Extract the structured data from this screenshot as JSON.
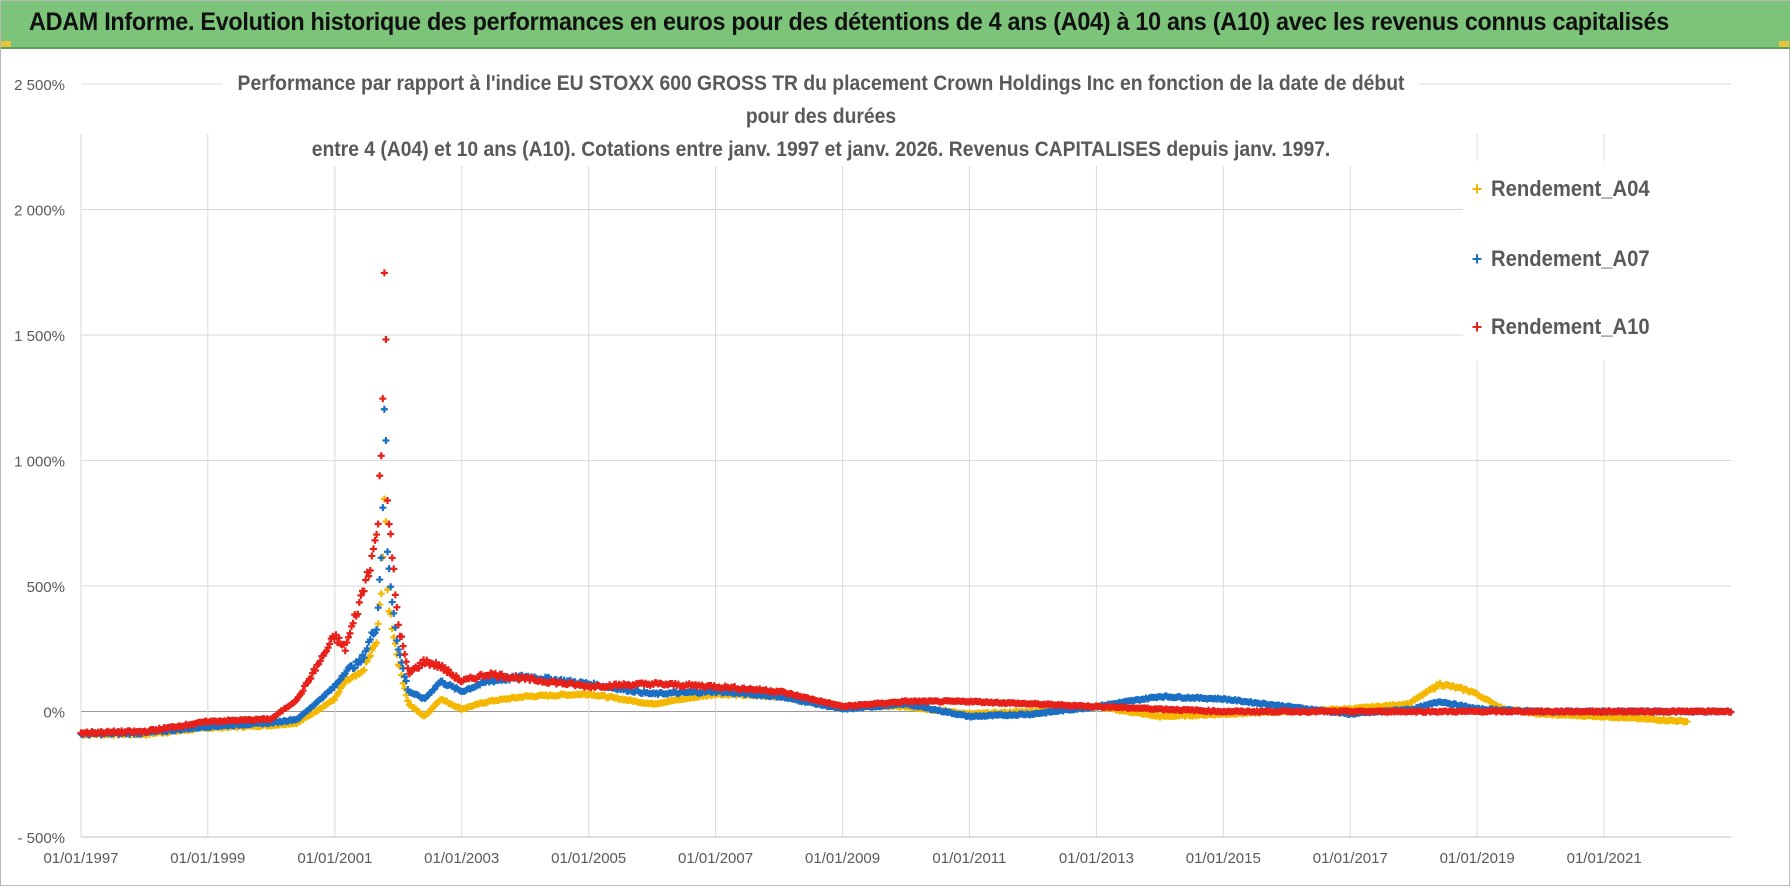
{
  "header": {
    "banner_text": "ADAM Informe. Evolution historique des performances en euros pour des détentions de 4 ans (A04) à 10 ans (A10) avec les revenus connus capitalisés"
  },
  "chart_data": {
    "type": "scatter",
    "title_line1": "Performance par rapport à l'indice EU STOXX 600 GROSS TR  du placement Crown Holdings Inc en fonction de la date de début pour des durées",
    "title_line2": "entre 4 (A04) et 10 ans (A10).  Cotations entre janv. 1997 et janv. 2026. Revenus CAPITALISES depuis janv. 1997.",
    "xlabel": "",
    "ylabel": "",
    "x_range": [
      "1997-01-01",
      "2023-01-01"
    ],
    "ylim": [
      -500,
      2500
    ],
    "y_ticks": [
      -500,
      0,
      500,
      1000,
      1500,
      2000,
      2500
    ],
    "y_tick_labels": [
      "- 500%",
      "0%",
      "500%",
      "1 000%",
      "1 500%",
      "2 000%",
      "2 500%"
    ],
    "x_tick_labels": [
      "01/01/1997",
      "01/01/1999",
      "01/01/2001",
      "01/01/2003",
      "01/01/2005",
      "01/01/2007",
      "01/01/2009",
      "01/01/2011",
      "01/01/2013",
      "01/01/2015",
      "01/01/2017",
      "01/01/2019",
      "01/01/2021"
    ],
    "x_tick_years": [
      1997,
      1999,
      2001,
      2003,
      2005,
      2007,
      2009,
      2011,
      2013,
      2015,
      2017,
      2019,
      2021
    ],
    "grid": true,
    "legend_position": "top-right",
    "marker": "+",
    "series": [
      {
        "name": "Rendement_A04",
        "color": "#f5b800",
        "points": [
          [
            "1997-01-01",
            -90
          ],
          [
            "1998-01-01",
            -90
          ],
          [
            "1999-01-01",
            -65
          ],
          [
            "2000-01-01",
            -55
          ],
          [
            "2000-06-01",
            -45
          ],
          [
            "2001-01-01",
            50
          ],
          [
            "2001-03-01",
            120
          ],
          [
            "2001-06-01",
            150
          ],
          [
            "2001-09-01",
            280
          ],
          [
            "2001-10-01",
            550
          ],
          [
            "2001-10-15",
            900
          ],
          [
            "2001-11-01",
            450
          ],
          [
            "2002-01-01",
            200
          ],
          [
            "2002-03-01",
            30
          ],
          [
            "2002-06-01",
            -20
          ],
          [
            "2002-09-01",
            50
          ],
          [
            "2003-01-01",
            10
          ],
          [
            "2003-06-01",
            40
          ],
          [
            "2004-01-01",
            60
          ],
          [
            "2005-01-01",
            70
          ],
          [
            "2006-01-01",
            30
          ],
          [
            "2007-01-01",
            70
          ],
          [
            "2008-01-01",
            60
          ],
          [
            "2009-01-01",
            20
          ],
          [
            "2010-01-01",
            20
          ],
          [
            "2011-01-01",
            -10
          ],
          [
            "2012-01-01",
            0
          ],
          [
            "2013-01-01",
            20
          ],
          [
            "2014-01-01",
            -20
          ],
          [
            "2015-01-01",
            -10
          ],
          [
            "2016-01-01",
            0
          ],
          [
            "2017-01-01",
            10
          ],
          [
            "2017-12-01",
            30
          ],
          [
            "2018-06-01",
            110
          ],
          [
            "2018-12-01",
            80
          ],
          [
            "2019-06-01",
            10
          ],
          [
            "2020-01-01",
            -10
          ],
          [
            "2021-01-01",
            -20
          ],
          [
            "2022-01-01",
            -35
          ],
          [
            "2022-05-01",
            -40
          ]
        ]
      },
      {
        "name": "Rendement_A07",
        "color": "#1a6fc4",
        "points": [
          [
            "1997-01-01",
            -90
          ],
          [
            "1998-01-01",
            -85
          ],
          [
            "1999-01-01",
            -60
          ],
          [
            "2000-01-01",
            -45
          ],
          [
            "2000-06-01",
            -30
          ],
          [
            "2001-01-01",
            100
          ],
          [
            "2001-03-01",
            160
          ],
          [
            "2001-06-01",
            200
          ],
          [
            "2001-09-01",
            350
          ],
          [
            "2001-10-01",
            700
          ],
          [
            "2001-10-15",
            1330
          ],
          [
            "2001-11-01",
            600
          ],
          [
            "2002-01-01",
            250
          ],
          [
            "2002-03-01",
            80
          ],
          [
            "2002-06-01",
            50
          ],
          [
            "2002-09-01",
            120
          ],
          [
            "2003-01-01",
            80
          ],
          [
            "2003-06-01",
            120
          ],
          [
            "2004-01-01",
            140
          ],
          [
            "2005-01-01",
            110
          ],
          [
            "2006-01-01",
            70
          ],
          [
            "2007-01-01",
            80
          ],
          [
            "2008-01-01",
            60
          ],
          [
            "2009-01-01",
            10
          ],
          [
            "2010-01-01",
            30
          ],
          [
            "2011-01-01",
            -20
          ],
          [
            "2012-01-01",
            -10
          ],
          [
            "2013-01-01",
            20
          ],
          [
            "2014-01-01",
            60
          ],
          [
            "2015-01-01",
            50
          ],
          [
            "2016-01-01",
            20
          ],
          [
            "2017-01-01",
            -10
          ],
          [
            "2018-01-01",
            10
          ],
          [
            "2018-06-01",
            40
          ],
          [
            "2019-01-01",
            10
          ],
          [
            "2020-01-01",
            0
          ],
          [
            "2021-01-01",
            0
          ],
          [
            "2022-01-01",
            0
          ],
          [
            "2023-01-01",
            0
          ]
        ]
      },
      {
        "name": "Rendement_A10",
        "color": "#e8201a",
        "points": [
          [
            "1997-01-01",
            -85
          ],
          [
            "1998-01-01",
            -80
          ],
          [
            "1999-01-01",
            -40
          ],
          [
            "2000-01-01",
            -30
          ],
          [
            "2000-06-01",
            50
          ],
          [
            "2001-01-01",
            300
          ],
          [
            "2001-03-01",
            250
          ],
          [
            "2001-06-01",
            450
          ],
          [
            "2001-09-01",
            700
          ],
          [
            "2001-10-01",
            1100
          ],
          [
            "2001-10-15",
            1980
          ],
          [
            "2001-11-01",
            800
          ],
          [
            "2002-01-01",
            350
          ],
          [
            "2002-03-01",
            150
          ],
          [
            "2002-06-01",
            200
          ],
          [
            "2002-09-01",
            180
          ],
          [
            "2003-01-01",
            120
          ],
          [
            "2003-06-01",
            150
          ],
          [
            "2004-01-01",
            130
          ],
          [
            "2005-01-01",
            100
          ],
          [
            "2006-01-01",
            110
          ],
          [
            "2007-01-01",
            100
          ],
          [
            "2008-01-01",
            80
          ],
          [
            "2009-01-01",
            20
          ],
          [
            "2010-01-01",
            40
          ],
          [
            "2011-01-01",
            40
          ],
          [
            "2012-01-01",
            30
          ],
          [
            "2013-01-01",
            20
          ],
          [
            "2014-01-01",
            10
          ],
          [
            "2015-01-01",
            0
          ],
          [
            "2016-01-01",
            0
          ],
          [
            "2017-01-01",
            0
          ],
          [
            "2018-01-01",
            0
          ],
          [
            "2019-01-01",
            0
          ],
          [
            "2020-01-01",
            0
          ],
          [
            "2021-01-01",
            0
          ],
          [
            "2022-01-01",
            0
          ],
          [
            "2023-01-01",
            0
          ]
        ]
      }
    ]
  }
}
